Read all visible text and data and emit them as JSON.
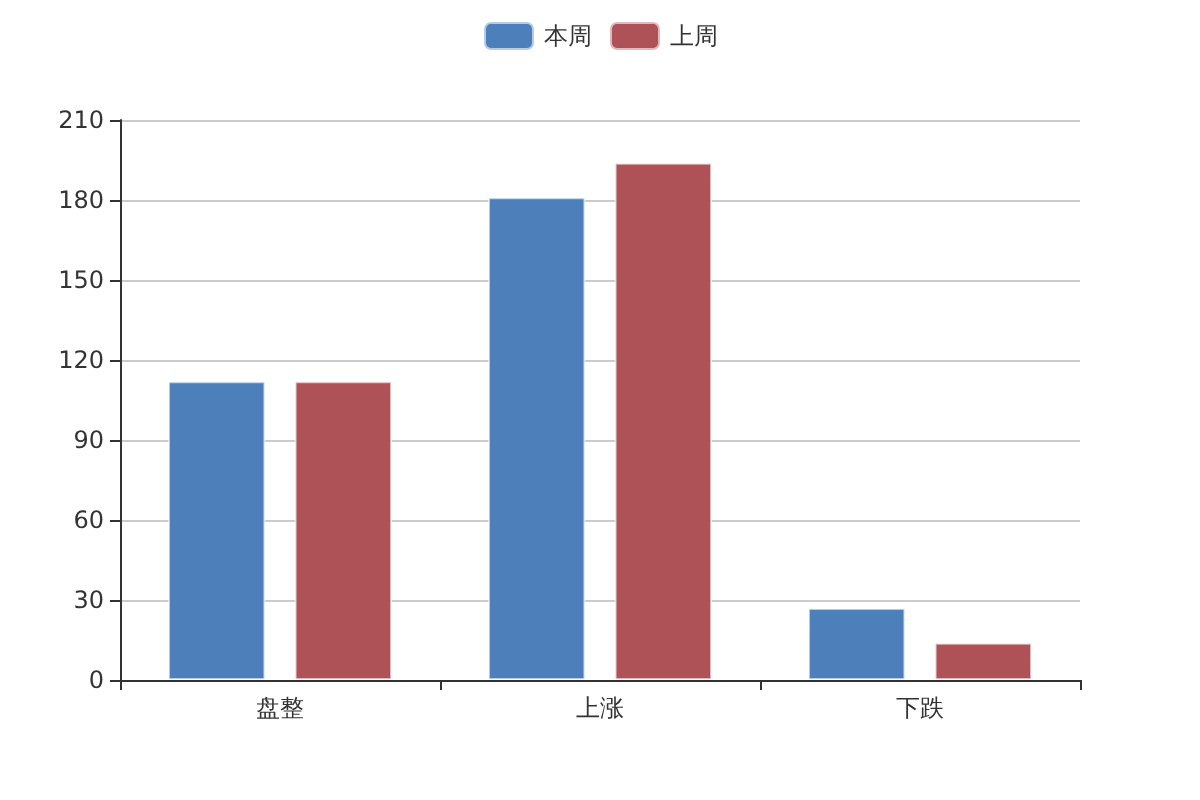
{
  "chart_data": {
    "type": "bar",
    "categories": [
      "盘整",
      "上涨",
      "下跌"
    ],
    "series": [
      {
        "name": "本周",
        "color": "#4d7fbb",
        "values": [
          112,
          181,
          27
        ]
      },
      {
        "name": "上周",
        "color": "#ae5257",
        "values": [
          112,
          194,
          14
        ]
      }
    ],
    "ylim": [
      0,
      210
    ],
    "yticks": [
      0,
      30,
      60,
      90,
      120,
      150,
      180,
      210
    ],
    "grid": "y",
    "legend": "top"
  }
}
